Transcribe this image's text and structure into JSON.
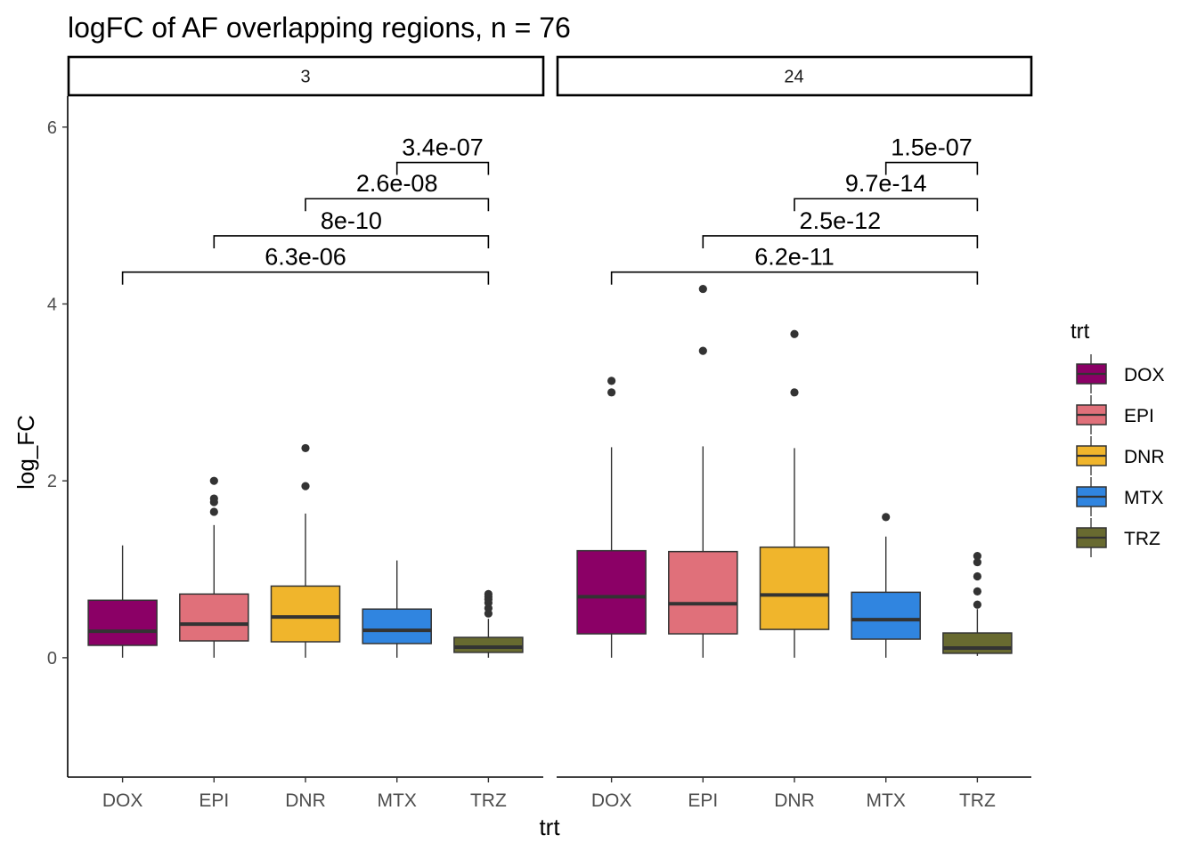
{
  "chart_data": {
    "type": "box",
    "title": "logFC of AF overlapping regions, n = 76",
    "xlabel": "trt",
    "ylabel": "log_FC",
    "ylim": [
      -1.35,
      6.35
    ],
    "yticks": [
      0,
      2,
      4,
      6
    ],
    "categories": [
      "DOX",
      "EPI",
      "DNR",
      "MTX",
      "TRZ"
    ],
    "colors": {
      "DOX": "#8B0066",
      "EPI": "#E0707A",
      "DNR": "#F0B52C",
      "MTX": "#3085E0",
      "TRZ": "#686A30"
    },
    "legend": {
      "title": "trt",
      "placement": "right",
      "entries": [
        "DOX",
        "EPI",
        "DNR",
        "MTX",
        "TRZ"
      ]
    },
    "grid": false,
    "facets": [
      {
        "label": "3",
        "boxes": [
          {
            "trt": "DOX",
            "lower_whisker": 0.0,
            "q1": 0.14,
            "median": 0.3,
            "q3": 0.65,
            "upper_whisker": 1.27,
            "outliers": []
          },
          {
            "trt": "EPI",
            "lower_whisker": 0.0,
            "q1": 0.19,
            "median": 0.38,
            "q3": 0.72,
            "upper_whisker": 1.5,
            "outliers": [
              1.65,
              1.76,
              1.8,
              2.0
            ]
          },
          {
            "trt": "DNR",
            "lower_whisker": 0.0,
            "q1": 0.18,
            "median": 0.46,
            "q3": 0.81,
            "upper_whisker": 1.63,
            "outliers": [
              1.94,
              2.37
            ]
          },
          {
            "trt": "MTX",
            "lower_whisker": 0.0,
            "q1": 0.16,
            "median": 0.31,
            "q3": 0.55,
            "upper_whisker": 1.1,
            "outliers": []
          },
          {
            "trt": "TRZ",
            "lower_whisker": 0.0,
            "q1": 0.06,
            "median": 0.12,
            "q3": 0.23,
            "upper_whisker": 0.44,
            "outliers": [
              0.5,
              0.56,
              0.62,
              0.66,
              0.69,
              0.72
            ]
          }
        ],
        "comparisons": [
          {
            "from": "TRZ",
            "to": "MTX",
            "label": "3.4e-07",
            "y": 5.6
          },
          {
            "from": "TRZ",
            "to": "DNR",
            "label": "2.6e-08",
            "y": 5.19
          },
          {
            "from": "TRZ",
            "to": "EPI",
            "label": "8e-10",
            "y": 4.77
          },
          {
            "from": "TRZ",
            "to": "DOX",
            "label": "6.3e-06",
            "y": 4.36
          }
        ]
      },
      {
        "label": "24",
        "boxes": [
          {
            "trt": "DOX",
            "lower_whisker": 0.0,
            "q1": 0.27,
            "median": 0.69,
            "q3": 1.21,
            "upper_whisker": 2.38,
            "outliers": [
              3.0,
              3.13
            ]
          },
          {
            "trt": "EPI",
            "lower_whisker": 0.0,
            "q1": 0.27,
            "median": 0.61,
            "q3": 1.2,
            "upper_whisker": 2.39,
            "outliers": [
              3.47,
              4.17
            ]
          },
          {
            "trt": "DNR",
            "lower_whisker": 0.0,
            "q1": 0.32,
            "median": 0.71,
            "q3": 1.25,
            "upper_whisker": 2.37,
            "outliers": [
              3.0,
              3.66
            ]
          },
          {
            "trt": "MTX",
            "lower_whisker": 0.0,
            "q1": 0.21,
            "median": 0.43,
            "q3": 0.74,
            "upper_whisker": 1.37,
            "outliers": [
              1.59
            ]
          },
          {
            "trt": "TRZ",
            "lower_whisker": 0.02,
            "q1": 0.05,
            "median": 0.11,
            "q3": 0.28,
            "upper_whisker": 0.55,
            "outliers": [
              0.6,
              0.75,
              0.92,
              1.08,
              1.15
            ]
          }
        ],
        "comparisons": [
          {
            "from": "TRZ",
            "to": "MTX",
            "label": "1.5e-07",
            "y": 5.6
          },
          {
            "from": "TRZ",
            "to": "DNR",
            "label": "9.7e-14",
            "y": 5.19
          },
          {
            "from": "TRZ",
            "to": "EPI",
            "label": "2.5e-12",
            "y": 4.77
          },
          {
            "from": "TRZ",
            "to": "DOX",
            "label": "6.2e-11",
            "y": 4.36
          }
        ]
      }
    ]
  }
}
